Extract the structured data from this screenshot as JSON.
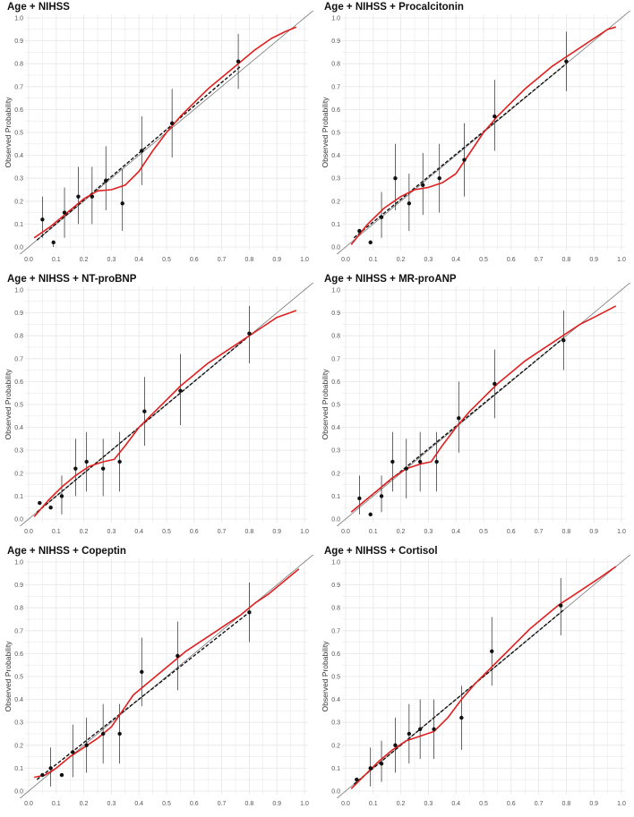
{
  "chart_data": [
    {
      "type": "scatter",
      "title": "Age + NIHSS",
      "ylabel": "Observed Probability",
      "xlabel": "",
      "xlim": [
        0,
        1
      ],
      "ylim": [
        0,
        1
      ],
      "xticks": [
        "0.0",
        "0.1",
        "0.2",
        "0.3",
        "0.4",
        "0.5",
        "0.6",
        "0.7",
        "0.8",
        "0.9",
        "1.0"
      ],
      "yticks": [
        "0.0",
        "0.1",
        "0.2",
        "0.3",
        "0.4",
        "0.5",
        "0.6",
        "0.7",
        "0.8",
        "0.9",
        "1.0"
      ],
      "grid": true,
      "points": [
        {
          "x": 0.05,
          "y": 0.12,
          "lo": 0.04,
          "hi": 0.22
        },
        {
          "x": 0.09,
          "y": 0.02,
          "lo": 0.0,
          "hi": 0.02
        },
        {
          "x": 0.13,
          "y": 0.15,
          "lo": 0.04,
          "hi": 0.26
        },
        {
          "x": 0.18,
          "y": 0.22,
          "lo": 0.1,
          "hi": 0.35
        },
        {
          "x": 0.23,
          "y": 0.22,
          "lo": 0.1,
          "hi": 0.35
        },
        {
          "x": 0.28,
          "y": 0.29,
          "lo": 0.16,
          "hi": 0.44
        },
        {
          "x": 0.34,
          "y": 0.19,
          "lo": 0.07,
          "hi": 0.34
        },
        {
          "x": 0.41,
          "y": 0.42,
          "lo": 0.27,
          "hi": 0.57
        },
        {
          "x": 0.52,
          "y": 0.54,
          "lo": 0.39,
          "hi": 0.69
        },
        {
          "x": 0.76,
          "y": 0.81,
          "lo": 0.69,
          "hi": 0.93
        }
      ],
      "smooth": [
        [
          0.02,
          0.04
        ],
        [
          0.08,
          0.09
        ],
        [
          0.14,
          0.15
        ],
        [
          0.2,
          0.21
        ],
        [
          0.25,
          0.245
        ],
        [
          0.3,
          0.25
        ],
        [
          0.35,
          0.27
        ],
        [
          0.4,
          0.33
        ],
        [
          0.45,
          0.42
        ],
        [
          0.5,
          0.5
        ],
        [
          0.55,
          0.57
        ],
        [
          0.6,
          0.63
        ],
        [
          0.65,
          0.69
        ],
        [
          0.7,
          0.74
        ],
        [
          0.76,
          0.8
        ],
        [
          0.82,
          0.86
        ],
        [
          0.88,
          0.91
        ],
        [
          0.93,
          0.94
        ],
        [
          0.97,
          0.96
        ]
      ],
      "linear": [
        [
          0.03,
          0.03
        ],
        [
          0.77,
          0.79
        ]
      ]
    },
    {
      "type": "scatter",
      "title": "Age + NIHSS + Procalcitonin",
      "ylabel": "Observed Probability",
      "xlabel": "",
      "xlim": [
        0,
        1
      ],
      "ylim": [
        0,
        1
      ],
      "xticks": [
        "0.0",
        "0.1",
        "0.2",
        "0.3",
        "0.4",
        "0.5",
        "0.6",
        "0.7",
        "0.8",
        "0.9",
        "1.0"
      ],
      "yticks": [
        "0.0",
        "0.1",
        "0.2",
        "0.3",
        "0.4",
        "0.5",
        "0.6",
        "0.7",
        "0.8",
        "0.9",
        "1.0"
      ],
      "grid": true,
      "points": [
        {
          "x": 0.05,
          "y": 0.07,
          "lo": 0.07,
          "hi": 0.07
        },
        {
          "x": 0.09,
          "y": 0.02,
          "lo": 0.02,
          "hi": 0.02
        },
        {
          "x": 0.13,
          "y": 0.13,
          "lo": 0.04,
          "hi": 0.24
        },
        {
          "x": 0.18,
          "y": 0.3,
          "lo": 0.16,
          "hi": 0.45
        },
        {
          "x": 0.23,
          "y": 0.19,
          "lo": 0.07,
          "hi": 0.32
        },
        {
          "x": 0.28,
          "y": 0.27,
          "lo": 0.14,
          "hi": 0.41
        },
        {
          "x": 0.34,
          "y": 0.3,
          "lo": 0.15,
          "hi": 0.45
        },
        {
          "x": 0.43,
          "y": 0.38,
          "lo": 0.22,
          "hi": 0.54
        },
        {
          "x": 0.54,
          "y": 0.57,
          "lo": 0.42,
          "hi": 0.73
        },
        {
          "x": 0.8,
          "y": 0.81,
          "lo": 0.68,
          "hi": 0.94
        }
      ],
      "smooth": [
        [
          0.02,
          0.01
        ],
        [
          0.08,
          0.1
        ],
        [
          0.14,
          0.17
        ],
        [
          0.2,
          0.22
        ],
        [
          0.25,
          0.25
        ],
        [
          0.3,
          0.26
        ],
        [
          0.35,
          0.28
        ],
        [
          0.4,
          0.32
        ],
        [
          0.45,
          0.41
        ],
        [
          0.5,
          0.5
        ],
        [
          0.55,
          0.57
        ],
        [
          0.6,
          0.63
        ],
        [
          0.65,
          0.69
        ],
        [
          0.7,
          0.74
        ],
        [
          0.75,
          0.79
        ],
        [
          0.8,
          0.83
        ],
        [
          0.85,
          0.87
        ],
        [
          0.9,
          0.91
        ],
        [
          0.95,
          0.95
        ],
        [
          0.98,
          0.96
        ]
      ],
      "linear": [
        [
          0.03,
          0.04
        ],
        [
          0.8,
          0.8
        ]
      ]
    },
    {
      "type": "scatter",
      "title": "Age + NIHSS + NT-proBNP",
      "ylabel": "Observed Probability",
      "xlabel": "",
      "xlim": [
        0,
        1
      ],
      "ylim": [
        0,
        1
      ],
      "xticks": [
        "0.0",
        "0.1",
        "0.2",
        "0.3",
        "0.4",
        "0.5",
        "0.6",
        "0.7",
        "0.8",
        "0.9",
        "1.0"
      ],
      "yticks": [
        "0.0",
        "0.1",
        "0.2",
        "0.3",
        "0.4",
        "0.5",
        "0.6",
        "0.7",
        "0.8",
        "0.9",
        "1.0"
      ],
      "grid": true,
      "points": [
        {
          "x": 0.04,
          "y": 0.07,
          "lo": 0.07,
          "hi": 0.07
        },
        {
          "x": 0.08,
          "y": 0.05,
          "lo": 0.05,
          "hi": 0.05
        },
        {
          "x": 0.12,
          "y": 0.1,
          "lo": 0.02,
          "hi": 0.19
        },
        {
          "x": 0.17,
          "y": 0.22,
          "lo": 0.1,
          "hi": 0.35
        },
        {
          "x": 0.21,
          "y": 0.25,
          "lo": 0.12,
          "hi": 0.38
        },
        {
          "x": 0.27,
          "y": 0.22,
          "lo": 0.1,
          "hi": 0.35
        },
        {
          "x": 0.33,
          "y": 0.25,
          "lo": 0.12,
          "hi": 0.38
        },
        {
          "x": 0.42,
          "y": 0.47,
          "lo": 0.32,
          "hi": 0.62
        },
        {
          "x": 0.55,
          "y": 0.56,
          "lo": 0.41,
          "hi": 0.72
        },
        {
          "x": 0.8,
          "y": 0.81,
          "lo": 0.68,
          "hi": 0.93
        }
      ],
      "smooth": [
        [
          0.02,
          0.01
        ],
        [
          0.07,
          0.08
        ],
        [
          0.12,
          0.14
        ],
        [
          0.17,
          0.19
        ],
        [
          0.22,
          0.23
        ],
        [
          0.27,
          0.25
        ],
        [
          0.31,
          0.26
        ],
        [
          0.35,
          0.32
        ],
        [
          0.4,
          0.4
        ],
        [
          0.45,
          0.46
        ],
        [
          0.5,
          0.52
        ],
        [
          0.55,
          0.58
        ],
        [
          0.6,
          0.63
        ],
        [
          0.65,
          0.68
        ],
        [
          0.7,
          0.72
        ],
        [
          0.75,
          0.76
        ],
        [
          0.8,
          0.8
        ],
        [
          0.85,
          0.84
        ],
        [
          0.9,
          0.88
        ],
        [
          0.97,
          0.91
        ]
      ],
      "linear": [
        [
          0.03,
          0.03
        ],
        [
          0.81,
          0.81
        ]
      ]
    },
    {
      "type": "scatter",
      "title": "Age + NIHSS + MR-proANP",
      "ylabel": "Observed Probability",
      "xlabel": "",
      "xlim": [
        0,
        1
      ],
      "ylim": [
        0,
        1
      ],
      "xticks": [
        "0.0",
        "0.1",
        "0.2",
        "0.3",
        "0.4",
        "0.5",
        "0.6",
        "0.7",
        "0.8",
        "0.9",
        "1.0"
      ],
      "yticks": [
        "0.0",
        "0.1",
        "0.2",
        "0.3",
        "0.4",
        "0.5",
        "0.6",
        "0.7",
        "0.8",
        "0.9",
        "1.0"
      ],
      "grid": true,
      "points": [
        {
          "x": 0.05,
          "y": 0.09,
          "lo": 0.02,
          "hi": 0.19
        },
        {
          "x": 0.09,
          "y": 0.02,
          "lo": 0.02,
          "hi": 0.02
        },
        {
          "x": 0.13,
          "y": 0.1,
          "lo": 0.03,
          "hi": 0.19
        },
        {
          "x": 0.17,
          "y": 0.25,
          "lo": 0.12,
          "hi": 0.38
        },
        {
          "x": 0.22,
          "y": 0.22,
          "lo": 0.09,
          "hi": 0.35
        },
        {
          "x": 0.27,
          "y": 0.25,
          "lo": 0.12,
          "hi": 0.38
        },
        {
          "x": 0.33,
          "y": 0.25,
          "lo": 0.12,
          "hi": 0.38
        },
        {
          "x": 0.41,
          "y": 0.44,
          "lo": 0.29,
          "hi": 0.6
        },
        {
          "x": 0.54,
          "y": 0.59,
          "lo": 0.44,
          "hi": 0.74
        },
        {
          "x": 0.79,
          "y": 0.78,
          "lo": 0.65,
          "hi": 0.91
        }
      ],
      "smooth": [
        [
          0.02,
          0.03
        ],
        [
          0.07,
          0.08
        ],
        [
          0.12,
          0.13
        ],
        [
          0.17,
          0.18
        ],
        [
          0.22,
          0.22
        ],
        [
          0.27,
          0.24
        ],
        [
          0.31,
          0.25
        ],
        [
          0.35,
          0.32
        ],
        [
          0.4,
          0.4
        ],
        [
          0.45,
          0.47
        ],
        [
          0.5,
          0.53
        ],
        [
          0.55,
          0.59
        ],
        [
          0.6,
          0.64
        ],
        [
          0.65,
          0.69
        ],
        [
          0.7,
          0.73
        ],
        [
          0.75,
          0.77
        ],
        [
          0.8,
          0.81
        ],
        [
          0.85,
          0.85
        ],
        [
          0.9,
          0.88
        ],
        [
          0.98,
          0.93
        ]
      ],
      "linear": [
        [
          0.03,
          0.04
        ],
        [
          0.79,
          0.79
        ]
      ]
    },
    {
      "type": "scatter",
      "title": "Age + NIHSS + Copeptin",
      "ylabel": "Observed Probability",
      "xlabel": "",
      "xlim": [
        0,
        1
      ],
      "ylim": [
        0,
        1
      ],
      "xticks": [
        "0.0",
        "0.1",
        "0.2",
        "0.3",
        "0.4",
        "0.5",
        "0.6",
        "0.7",
        "0.8",
        "0.9",
        "1.0"
      ],
      "yticks": [
        "0.0",
        "0.1",
        "0.2",
        "0.3",
        "0.4",
        "0.5",
        "0.6",
        "0.7",
        "0.8",
        "0.9",
        "1.0"
      ],
      "grid": true,
      "points": [
        {
          "x": 0.05,
          "y": 0.07,
          "lo": 0.07,
          "hi": 0.07
        },
        {
          "x": 0.08,
          "y": 0.1,
          "lo": 0.02,
          "hi": 0.19
        },
        {
          "x": 0.12,
          "y": 0.07,
          "lo": 0.07,
          "hi": 0.07
        },
        {
          "x": 0.16,
          "y": 0.17,
          "lo": 0.06,
          "hi": 0.29
        },
        {
          "x": 0.21,
          "y": 0.2,
          "lo": 0.08,
          "hi": 0.32
        },
        {
          "x": 0.27,
          "y": 0.25,
          "lo": 0.12,
          "hi": 0.38
        },
        {
          "x": 0.33,
          "y": 0.25,
          "lo": 0.12,
          "hi": 0.38
        },
        {
          "x": 0.41,
          "y": 0.52,
          "lo": 0.37,
          "hi": 0.67
        },
        {
          "x": 0.54,
          "y": 0.59,
          "lo": 0.44,
          "hi": 0.74
        },
        {
          "x": 0.8,
          "y": 0.78,
          "lo": 0.65,
          "hi": 0.91
        }
      ],
      "smooth": [
        [
          0.02,
          0.06
        ],
        [
          0.06,
          0.07
        ],
        [
          0.1,
          0.1
        ],
        [
          0.15,
          0.15
        ],
        [
          0.2,
          0.19
        ],
        [
          0.25,
          0.23
        ],
        [
          0.3,
          0.28
        ],
        [
          0.34,
          0.35
        ],
        [
          0.38,
          0.42
        ],
        [
          0.42,
          0.46
        ],
        [
          0.47,
          0.51
        ],
        [
          0.52,
          0.56
        ],
        [
          0.57,
          0.61
        ],
        [
          0.62,
          0.65
        ],
        [
          0.67,
          0.69
        ],
        [
          0.72,
          0.73
        ],
        [
          0.77,
          0.77
        ],
        [
          0.82,
          0.82
        ],
        [
          0.87,
          0.86
        ],
        [
          0.92,
          0.91
        ],
        [
          0.98,
          0.97
        ]
      ],
      "linear": [
        [
          0.03,
          0.05
        ],
        [
          0.81,
          0.79
        ]
      ]
    },
    {
      "type": "scatter",
      "title": "Age + NIHSS + Cortisol",
      "ylabel": "Observed Probability",
      "xlabel": "",
      "xlim": [
        0,
        1
      ],
      "ylim": [
        0,
        1
      ],
      "xticks": [
        "0.0",
        "0.1",
        "0.2",
        "0.3",
        "0.4",
        "0.5",
        "0.6",
        "0.7",
        "0.8",
        "0.9",
        "1.0"
      ],
      "yticks": [
        "0.0",
        "0.1",
        "0.2",
        "0.3",
        "0.4",
        "0.5",
        "0.6",
        "0.7",
        "0.8",
        "0.9",
        "1.0"
      ],
      "grid": true,
      "points": [
        {
          "x": 0.04,
          "y": 0.05,
          "lo": 0.05,
          "hi": 0.05
        },
        {
          "x": 0.09,
          "y": 0.1,
          "lo": 0.02,
          "hi": 0.19
        },
        {
          "x": 0.13,
          "y": 0.12,
          "lo": 0.04,
          "hi": 0.22
        },
        {
          "x": 0.18,
          "y": 0.2,
          "lo": 0.08,
          "hi": 0.32
        },
        {
          "x": 0.23,
          "y": 0.25,
          "lo": 0.12,
          "hi": 0.38
        },
        {
          "x": 0.27,
          "y": 0.27,
          "lo": 0.14,
          "hi": 0.4
        },
        {
          "x": 0.32,
          "y": 0.27,
          "lo": 0.14,
          "hi": 0.4
        },
        {
          "x": 0.42,
          "y": 0.32,
          "lo": 0.18,
          "hi": 0.46
        },
        {
          "x": 0.53,
          "y": 0.61,
          "lo": 0.46,
          "hi": 0.76
        },
        {
          "x": 0.78,
          "y": 0.81,
          "lo": 0.68,
          "hi": 0.93
        }
      ],
      "smooth": [
        [
          0.02,
          0.01
        ],
        [
          0.07,
          0.07
        ],
        [
          0.12,
          0.13
        ],
        [
          0.17,
          0.18
        ],
        [
          0.22,
          0.22
        ],
        [
          0.27,
          0.24
        ],
        [
          0.32,
          0.26
        ],
        [
          0.37,
          0.32
        ],
        [
          0.42,
          0.4
        ],
        [
          0.47,
          0.47
        ],
        [
          0.52,
          0.53
        ],
        [
          0.57,
          0.59
        ],
        [
          0.62,
          0.65
        ],
        [
          0.67,
          0.71
        ],
        [
          0.72,
          0.76
        ],
        [
          0.77,
          0.81
        ],
        [
          0.82,
          0.85
        ],
        [
          0.87,
          0.89
        ],
        [
          0.92,
          0.93
        ],
        [
          0.98,
          0.98
        ]
      ],
      "linear": [
        [
          0.03,
          0.03
        ],
        [
          0.79,
          0.79
        ]
      ]
    }
  ],
  "colors": {
    "smooth_line": "#e02020",
    "linear_fit": "#111111",
    "identity_line": "#777777",
    "points": "#111111",
    "grid": "#e6e6e6"
  }
}
